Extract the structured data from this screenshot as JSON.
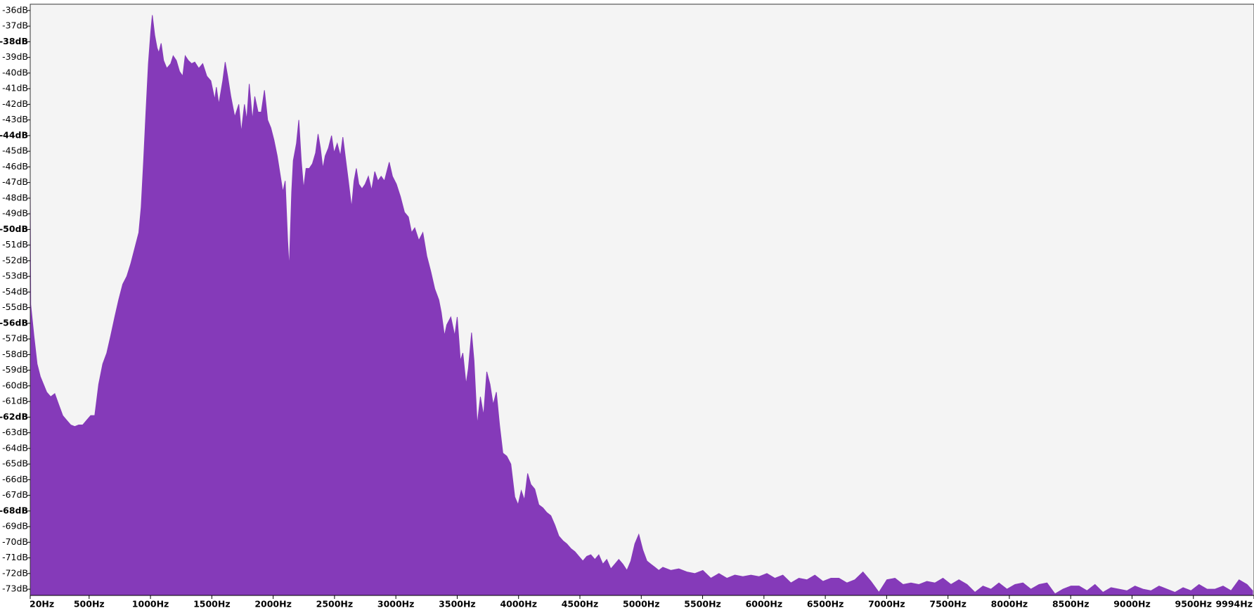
{
  "chart_data": {
    "type": "area",
    "color": "#853ab9",
    "xlim": [
      20,
      9994
    ],
    "ylim": [
      -73.4,
      -35.6
    ],
    "xticks": [
      {
        "value": 20,
        "label": "20Hz"
      },
      {
        "value": 500,
        "label": "500Hz"
      },
      {
        "value": 1000,
        "label": "1000Hz"
      },
      {
        "value": 1500,
        "label": "1500Hz"
      },
      {
        "value": 2000,
        "label": "2000Hz"
      },
      {
        "value": 2500,
        "label": "2500Hz"
      },
      {
        "value": 3000,
        "label": "3000Hz"
      },
      {
        "value": 3500,
        "label": "3500Hz"
      },
      {
        "value": 4000,
        "label": "4000Hz"
      },
      {
        "value": 4500,
        "label": "4500Hz"
      },
      {
        "value": 5000,
        "label": "5000Hz"
      },
      {
        "value": 5500,
        "label": "5500Hz"
      },
      {
        "value": 6000,
        "label": "6000Hz"
      },
      {
        "value": 6500,
        "label": "6500Hz"
      },
      {
        "value": 7000,
        "label": "7000Hz"
      },
      {
        "value": 7500,
        "label": "7500Hz"
      },
      {
        "value": 8000,
        "label": "8000Hz"
      },
      {
        "value": 8500,
        "label": "8500Hz"
      },
      {
        "value": 9000,
        "label": "9000Hz"
      },
      {
        "value": 9500,
        "label": "9500Hz"
      },
      {
        "value": 9994,
        "label": "9994Hz"
      }
    ],
    "yticks": [
      {
        "value": -36,
        "label": "-36dB"
      },
      {
        "value": -37,
        "label": "-37dB"
      },
      {
        "value": -38,
        "label": "-38dB"
      },
      {
        "value": -39,
        "label": "-39dB"
      },
      {
        "value": -40,
        "label": "-40dB"
      },
      {
        "value": -41,
        "label": "-41dB"
      },
      {
        "value": -42,
        "label": "-42dB"
      },
      {
        "value": -43,
        "label": "-43dB"
      },
      {
        "value": -44,
        "label": "-44dB"
      },
      {
        "value": -45,
        "label": "-45dB"
      },
      {
        "value": -46,
        "label": "-46dB"
      },
      {
        "value": -47,
        "label": "-47dB"
      },
      {
        "value": -48,
        "label": "-48dB"
      },
      {
        "value": -49,
        "label": "-49dB"
      },
      {
        "value": -50,
        "label": "-50dB"
      },
      {
        "value": -51,
        "label": "-51dB"
      },
      {
        "value": -52,
        "label": "-52dB"
      },
      {
        "value": -53,
        "label": "-53dB"
      },
      {
        "value": -54,
        "label": "-54dB"
      },
      {
        "value": -55,
        "label": "-55dB"
      },
      {
        "value": -56,
        "label": "-56dB"
      },
      {
        "value": -57,
        "label": "-57dB"
      },
      {
        "value": -58,
        "label": "-58dB"
      },
      {
        "value": -59,
        "label": "-59dB"
      },
      {
        "value": -60,
        "label": "-60dB"
      },
      {
        "value": -61,
        "label": "-61dB"
      },
      {
        "value": -62,
        "label": "-62dB"
      },
      {
        "value": -63,
        "label": "-63dB"
      },
      {
        "value": -64,
        "label": "-64dB"
      },
      {
        "value": -65,
        "label": "-65dB"
      },
      {
        "value": -66,
        "label": "-66dB"
      },
      {
        "value": -67,
        "label": "-67dB"
      },
      {
        "value": -68,
        "label": "-68dB"
      },
      {
        "value": -69,
        "label": "-69dB"
      },
      {
        "value": -70,
        "label": "-70dB"
      },
      {
        "value": -71,
        "label": "-71dB"
      },
      {
        "value": -72,
        "label": "-72dB"
      },
      {
        "value": -73,
        "label": "-73dB"
      }
    ],
    "x": [
      20,
      24,
      50,
      76,
      102,
      128,
      154,
      187,
      220,
      252,
      285,
      317,
      350,
      383,
      415,
      448,
      480,
      513,
      546,
      578,
      611,
      644,
      676,
      709,
      741,
      774,
      807,
      839,
      872,
      905,
      924,
      944,
      963,
      983,
      1002,
      1015,
      1035,
      1054,
      1068,
      1087,
      1107,
      1133,
      1165,
      1185,
      1211,
      1237,
      1263,
      1283,
      1309,
      1335,
      1361,
      1394,
      1426,
      1459,
      1492,
      1524,
      1537,
      1557,
      1589,
      1609,
      1629,
      1655,
      1687,
      1720,
      1740,
      1766,
      1785,
      1805,
      1831,
      1850,
      1877,
      1903,
      1929,
      1955,
      1981,
      2007,
      2033,
      2059,
      2079,
      2098,
      2118,
      2131,
      2151,
      2164,
      2190,
      2209,
      2229,
      2248,
      2268,
      2294,
      2320,
      2346,
      2366,
      2385,
      2405,
      2424,
      2450,
      2476,
      2496,
      2522,
      2548,
      2568,
      2587,
      2613,
      2639,
      2659,
      2678,
      2698,
      2724,
      2750,
      2776,
      2802,
      2828,
      2854,
      2880,
      2907,
      2946,
      2972,
      3004,
      3037,
      3070,
      3102,
      3128,
      3154,
      3187,
      3220,
      3252,
      3285,
      3317,
      3350,
      3370,
      3396,
      3415,
      3448,
      3480,
      3500,
      3526,
      3546,
      3572,
      3591,
      3617,
      3637,
      3663,
      3689,
      3715,
      3741,
      3767,
      3793,
      3819,
      3845,
      3872,
      3904,
      3937,
      3969,
      3996,
      4022,
      4048,
      4074,
      4100,
      4132,
      4165,
      4198,
      4230,
      4263,
      4296,
      4328,
      4361,
      4393,
      4426,
      4459,
      4491,
      4524,
      4556,
      4589,
      4622,
      4654,
      4687,
      4719,
      4752,
      4785,
      4817,
      4850,
      4883,
      4915,
      4948,
      4980,
      5013,
      5046,
      5078,
      5111,
      5143,
      5176,
      5241,
      5306,
      5372,
      5437,
      5502,
      5567,
      5633,
      5698,
      5763,
      5828,
      5894,
      5959,
      6024,
      6089,
      6154,
      6220,
      6285,
      6350,
      6415,
      6481,
      6546,
      6611,
      6676,
      6741,
      6807,
      6872,
      6937,
      7002,
      7068,
      7133,
      7198,
      7263,
      7328,
      7394,
      7459,
      7524,
      7589,
      7655,
      7720,
      7785,
      7850,
      7915,
      7981,
      8046,
      8111,
      8176,
      8242,
      8307,
      8372,
      8437,
      8502,
      8568,
      8633,
      8698,
      8763,
      8829,
      8894,
      8959,
      9024,
      9089,
      9155,
      9220,
      9285,
      9350,
      9416,
      9481,
      9546,
      9611,
      9676,
      9742,
      9807,
      9872,
      9937,
      9983
    ],
    "values": [
      -47.0,
      -54.8,
      -56.8,
      -58.6,
      -59.4,
      -59.9,
      -60.4,
      -60.7,
      -60.5,
      -61.2,
      -61.9,
      -62.2,
      -62.5,
      -62.6,
      -62.5,
      -62.5,
      -62.2,
      -61.9,
      -61.9,
      -59.9,
      -58.6,
      -57.9,
      -56.8,
      -55.6,
      -54.5,
      -53.5,
      -53.0,
      -52.2,
      -51.2,
      -50.2,
      -48.6,
      -45.6,
      -42.5,
      -39.4,
      -37.4,
      -36.3,
      -37.6,
      -38.4,
      -38.7,
      -38.1,
      -39.2,
      -39.7,
      -39.4,
      -38.9,
      -39.2,
      -39.9,
      -40.2,
      -38.9,
      -39.2,
      -39.4,
      -39.3,
      -39.7,
      -39.4,
      -40.2,
      -40.5,
      -41.7,
      -40.9,
      -42.0,
      -40.5,
      -39.3,
      -40.2,
      -41.5,
      -42.8,
      -42.0,
      -43.8,
      -42.0,
      -43.0,
      -40.7,
      -43.0,
      -41.5,
      -42.5,
      -42.5,
      -41.1,
      -43.0,
      -43.5,
      -44.3,
      -45.3,
      -46.6,
      -47.6,
      -46.9,
      -50.7,
      -52.5,
      -47.6,
      -45.6,
      -44.5,
      -43.0,
      -45.6,
      -47.4,
      -46.1,
      -46.1,
      -45.8,
      -45.1,
      -43.9,
      -44.8,
      -46.1,
      -45.3,
      -44.8,
      -44.0,
      -45.1,
      -44.5,
      -45.3,
      -44.1,
      -45.3,
      -46.9,
      -48.6,
      -46.9,
      -46.1,
      -47.1,
      -47.4,
      -47.1,
      -46.6,
      -47.5,
      -46.3,
      -46.9,
      -46.6,
      -46.9,
      -45.7,
      -46.6,
      -47.1,
      -47.9,
      -48.9,
      -49.2,
      -50.2,
      -49.9,
      -50.7,
      -50.2,
      -51.7,
      -52.7,
      -53.8,
      -54.5,
      -55.3,
      -56.8,
      -56.1,
      -55.6,
      -56.8,
      -55.6,
      -58.4,
      -57.9,
      -59.9,
      -58.9,
      -56.6,
      -58.4,
      -62.5,
      -60.7,
      -61.9,
      -59.1,
      -59.9,
      -61.2,
      -60.4,
      -62.5,
      -64.3,
      -64.5,
      -65.0,
      -67.1,
      -67.6,
      -66.7,
      -67.3,
      -65.6,
      -66.3,
      -66.6,
      -67.6,
      -67.8,
      -68.1,
      -68.3,
      -68.9,
      -69.6,
      -69.9,
      -70.1,
      -70.4,
      -70.6,
      -70.9,
      -71.2,
      -70.9,
      -70.8,
      -71.1,
      -70.8,
      -71.4,
      -71.1,
      -71.7,
      -71.4,
      -71.1,
      -71.4,
      -71.8,
      -71.2,
      -70.1,
      -69.5,
      -70.5,
      -71.2,
      -71.4,
      -71.6,
      -71.8,
      -71.6,
      -71.8,
      -71.7,
      -71.9,
      -72.0,
      -71.8,
      -72.3,
      -72.0,
      -72.3,
      -72.1,
      -72.2,
      -72.1,
      -72.2,
      -72.0,
      -72.3,
      -72.1,
      -72.6,
      -72.3,
      -72.4,
      -72.1,
      -72.5,
      -72.3,
      -72.3,
      -72.6,
      -72.4,
      -71.9,
      -72.5,
      -73.2,
      -72.4,
      -72.3,
      -72.7,
      -72.6,
      -72.7,
      -72.5,
      -72.6,
      -72.3,
      -72.7,
      -72.4,
      -72.7,
      -73.2,
      -72.8,
      -73.0,
      -72.6,
      -73.0,
      -72.7,
      -72.6,
      -73.0,
      -72.7,
      -72.6,
      -73.3,
      -73.0,
      -72.8,
      -72.8,
      -73.1,
      -72.7,
      -73.2,
      -72.9,
      -73.0,
      -73.1,
      -72.8,
      -73.0,
      -73.1,
      -72.8,
      -73.0,
      -73.2,
      -72.9,
      -73.1,
      -72.7,
      -73.0,
      -73.0,
      -72.8,
      -73.1,
      -72.4,
      -72.7,
      -73.1
    ]
  }
}
